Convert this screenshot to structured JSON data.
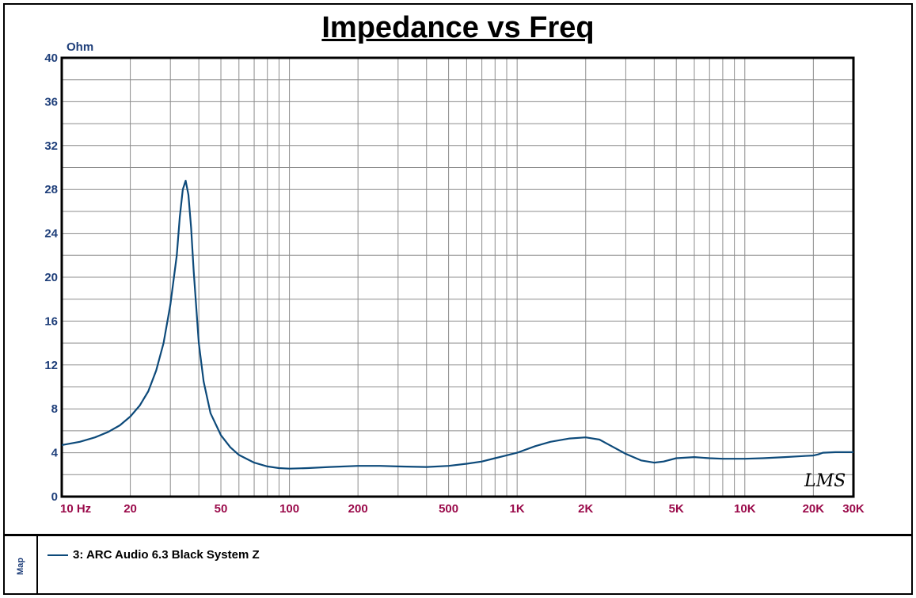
{
  "chart_data": {
    "type": "line",
    "title": "Impedance vs Freq",
    "ylabel": "Ohm",
    "xscale": "log",
    "xlim": [
      10,
      30000
    ],
    "ylim": [
      0,
      40
    ],
    "grid": true,
    "y_ticks": [
      0,
      4,
      8,
      12,
      16,
      20,
      24,
      28,
      32,
      36,
      40
    ],
    "x_ticks": [
      {
        "value": 10,
        "label": "10 Hz"
      },
      {
        "value": 20,
        "label": "20"
      },
      {
        "value": 50,
        "label": "50"
      },
      {
        "value": 100,
        "label": "100"
      },
      {
        "value": 200,
        "label": "200"
      },
      {
        "value": 500,
        "label": "500"
      },
      {
        "value": 1000,
        "label": "1K"
      },
      {
        "value": 2000,
        "label": "2K"
      },
      {
        "value": 5000,
        "label": "5K"
      },
      {
        "value": 10000,
        "label": "10K"
      },
      {
        "value": 20000,
        "label": "20K"
      },
      {
        "value": 30000,
        "label": "30K"
      }
    ],
    "series": [
      {
        "name": "3: ARC Audio 6.3 Black System Z",
        "color": "#0d4a7a",
        "x": [
          10,
          12,
          14,
          16,
          18,
          20,
          22,
          24,
          26,
          28,
          30,
          32,
          33,
          34,
          35,
          36,
          37,
          38,
          40,
          42,
          45,
          50,
          55,
          60,
          70,
          80,
          90,
          100,
          120,
          150,
          200,
          250,
          300,
          400,
          500,
          600,
          700,
          800,
          1000,
          1200,
          1400,
          1700,
          2000,
          2300,
          2600,
          3000,
          3500,
          4000,
          4400,
          5000,
          6000,
          7000,
          8000,
          10000,
          12000,
          15000,
          18000,
          20000,
          21000,
          22000,
          25000,
          30000
        ],
        "y": [
          4.7,
          5.0,
          5.4,
          5.9,
          6.5,
          7.3,
          8.3,
          9.6,
          11.5,
          14.0,
          17.5,
          22.0,
          25.5,
          28.0,
          28.8,
          27.5,
          24.5,
          20.5,
          14.0,
          10.5,
          7.6,
          5.6,
          4.5,
          3.8,
          3.1,
          2.75,
          2.6,
          2.55,
          2.6,
          2.7,
          2.8,
          2.8,
          2.75,
          2.7,
          2.8,
          3.0,
          3.2,
          3.5,
          4.0,
          4.6,
          5.0,
          5.3,
          5.4,
          5.2,
          4.6,
          3.9,
          3.3,
          3.1,
          3.2,
          3.5,
          3.6,
          3.5,
          3.45,
          3.45,
          3.5,
          3.6,
          3.7,
          3.75,
          3.85,
          4.0,
          4.05,
          4.05
        ]
      }
    ]
  },
  "map_label": "Map",
  "legend_text": "3: ARC Audio 6.3 Black System Z",
  "watermark": "LMS"
}
